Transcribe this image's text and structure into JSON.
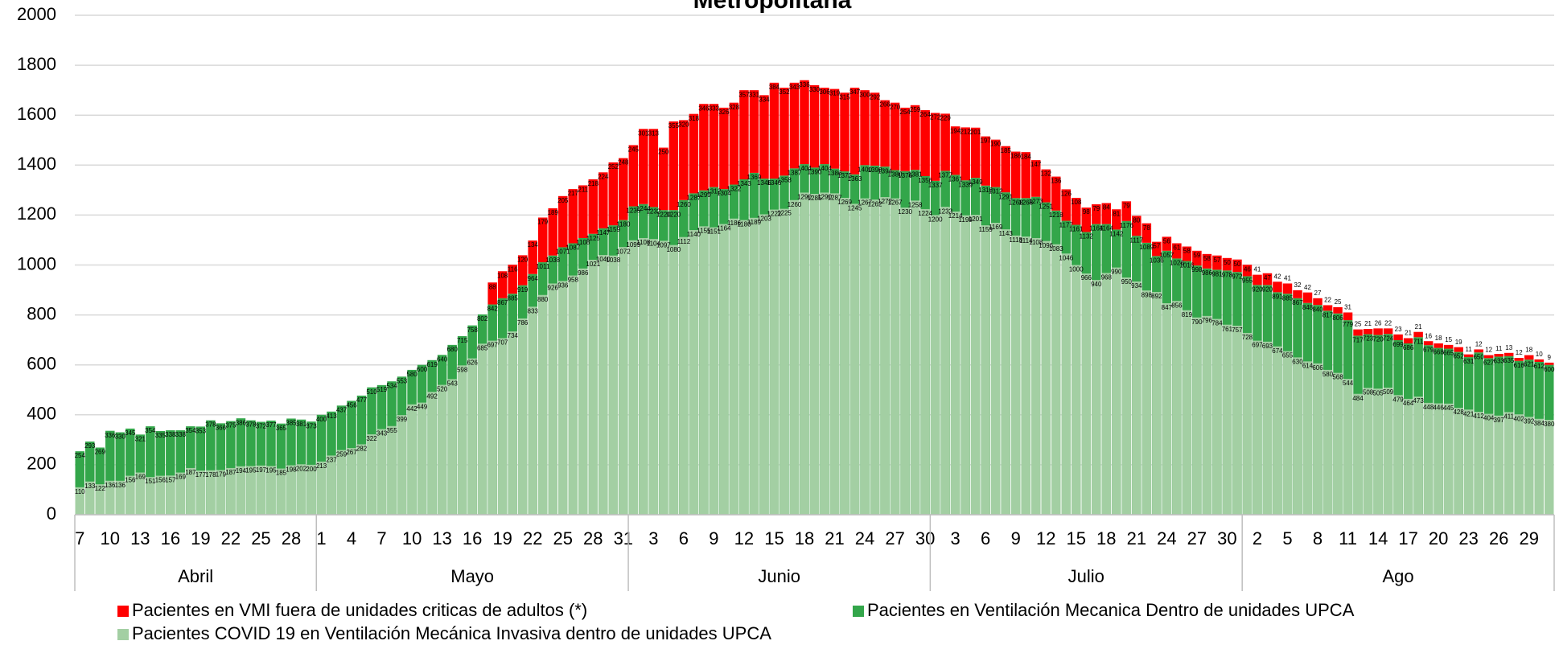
{
  "chart_data": {
    "type": "bar",
    "title": "Metropolitana",
    "groups": [
      {
        "label": "Abril",
        "categories": [
          7,
          null,
          null,
          10,
          null,
          null,
          13,
          null,
          null,
          16,
          null,
          null,
          19,
          null,
          null,
          22,
          null,
          null,
          25,
          null,
          null,
          28,
          null,
          null
        ]
      },
      {
        "label": "Mayo",
        "categories": [
          1,
          null,
          null,
          4,
          null,
          null,
          7,
          null,
          null,
          10,
          null,
          null,
          13,
          null,
          null,
          16,
          null,
          null,
          19,
          null,
          null,
          22,
          null,
          null,
          25,
          null,
          null,
          28,
          null,
          null,
          31
        ]
      },
      {
        "label": "Junio",
        "categories": [
          null,
          null,
          3,
          null,
          null,
          6,
          null,
          null,
          9,
          null,
          null,
          12,
          null,
          null,
          15,
          null,
          null,
          18,
          null,
          null,
          21,
          null,
          null,
          24,
          null,
          null,
          27,
          null,
          null,
          30
        ]
      },
      {
        "label": "Julio",
        "categories": [
          null,
          null,
          3,
          null,
          null,
          6,
          null,
          null,
          9,
          null,
          null,
          12,
          null,
          null,
          15,
          null,
          null,
          18,
          null,
          null,
          21,
          null,
          null,
          24,
          null,
          null,
          27,
          null,
          null,
          30,
          null
        ]
      },
      {
        "label": "Ago",
        "categories": [
          null,
          2,
          null,
          null,
          5,
          null,
          null,
          8,
          null,
          null,
          11,
          null,
          null,
          14,
          null,
          null,
          17,
          null,
          null,
          20,
          null,
          null,
          23,
          null,
          null,
          26,
          null,
          null,
          29,
          null,
          null
        ]
      }
    ],
    "series": [
      {
        "name": "Pacientes en VMI fuera de unidades criticas de adultos (*)",
        "color": "#ff0000",
        "values": [
          0,
          0,
          0,
          0,
          0,
          0,
          0,
          0,
          0,
          0,
          0,
          0,
          0,
          0,
          0,
          0,
          0,
          0,
          0,
          0,
          0,
          0,
          0,
          0,
          0,
          0,
          0,
          0,
          0,
          0,
          0,
          0,
          0,
          0,
          0,
          0,
          0,
          0,
          0,
          0,
          0,
          88,
          108,
          116,
          120,
          134,
          179,
          189,
          205,
          217,
          211,
          218,
          224,
          252,
          248,
          245,
          301,
          313,
          250,
          355,
          320,
          318,
          346,
          333,
          326,
          328,
          357,
          331,
          334,
          384,
          352,
          343,
          336,
          330,
          306,
          319,
          315,
          347,
          300,
          292,
          266,
          270,
          254,
          259,
          264,
          272,
          229,
          194,
          212,
          201,
          197,
          190,
          185,
          186,
          184,
          147,
          132,
          136,
          126,
          108,
          98,
          79,
          84,
          81,
          79,
          80,
          78,
          57,
          56,
          61,
          58,
          59,
          58,
          57,
          50,
          50,
          46,
          41,
          47,
          42,
          41,
          32,
          42,
          27,
          22,
          25,
          31,
          25,
          21,
          26,
          22,
          23,
          21,
          21,
          16,
          18,
          15,
          19,
          11,
          12,
          12,
          11,
          13,
          12,
          18,
          10,
          9
        ]
      },
      {
        "name": "Pacientes en Ventilación Mecanica Dentro de unidades UPCA",
        "color": "#33a64a",
        "values": [
          254,
          293,
          269,
          336,
          330,
          345,
          321,
          354,
          335,
          338,
          338,
          354,
          353,
          378,
          366,
          375,
          386,
          378,
          372,
          377,
          365,
          385,
          381,
          373,
          400,
          413,
          437,
          456,
          477,
          510,
          519,
          534,
          553,
          580,
          600,
          619,
          640,
          680,
          715,
          758,
          802,
          842,
          867,
          885,
          919,
          964,
          1011,
          1038,
          1071,
          1087,
          1108,
          1125,
          1147,
          1159,
          1180,
          1235,
          1244,
          1232,
          1220,
          1220,
          1260,
          1287,
          1299,
          1312,
          1304,
          1322,
          1343,
          1369,
          1346,
          1346,
          1358,
          1387,
          1404,
          1390,
          1404,
          1386,
          1375,
          1363,
          1400,
          1398,
          1394,
          1380,
          1376,
          1381,
          1356,
          1337,
          1377,
          1361,
          1339,
          1349,
          1318,
          1312,
          1291,
          1268,
          1268,
          1273,
          1251,
          1218,
          1177,
          1161,
          1132,
          1164,
          1164,
          1142,
          1176,
          1117,
          1089,
          1036,
          1057,
          1026,
          1016,
          998,
          986,
          981,
          978,
          972,
          955,
          920,
          920,
          891,
          885,
          867,
          848,
          840,
          817,
          806,
          779,
          717,
          723,
          720,
          724,
          699,
          686,
          711,
          679,
          668,
          665,
          652,
          631,
          650,
          627,
          633,
          635,
          616,
          621,
          612,
          600
        ]
      },
      {
        "name": "Pacientes COVID 19 en Ventilación Mecánica Invasiva dentro de unidades UPCA",
        "color": "#a3cfa3",
        "values": [
          110,
          133,
          122,
          136,
          136,
          156,
          169,
          151,
          156,
          157,
          169,
          187,
          177,
          178,
          179,
          187,
          194,
          195,
          197,
          195,
          185,
          198,
          202,
          200,
          213,
          237,
          259,
          267,
          282,
          322,
          343,
          355,
          399,
          442,
          449,
          492,
          520,
          543,
          598,
          626,
          685,
          697,
          707,
          734,
          786,
          833,
          880,
          926,
          936,
          958,
          986,
          1021,
          1040,
          1038,
          1072,
          1099,
          1108,
          1104,
          1097,
          1080,
          1112,
          1140,
          1155,
          1151,
          1164,
          1186,
          1180,
          1189,
          1203,
          1222,
          1225,
          1260,
          1290,
          1285,
          1290,
          1287,
          1269,
          1245,
          1267,
          1262,
          1272,
          1267,
          1230,
          1258,
          1224,
          1200,
          1233,
          1214,
          1199,
          1201,
          1159,
          1169,
          1143,
          1118,
          1114,
          1108,
          1096,
          1083,
          1046,
          1000,
          966,
          940,
          968,
          990,
          950,
          934,
          898,
          892,
          847,
          856,
          819,
          790,
          796,
          784,
          761,
          757,
          728,
          697,
          693,
          674,
          655,
          630,
          614,
          606,
          580,
          568,
          544,
          484,
          508,
          505,
          509,
          479,
          464,
          473,
          448,
          446,
          445,
          428,
          421,
          412,
          404,
          397,
          411,
          402,
          392,
          384,
          380
        ]
      }
    ],
    "ylim": [
      0,
      2000
    ],
    "yticks": [
      0,
      200,
      400,
      600,
      800,
      1000,
      1200,
      1400,
      1600,
      1800,
      2000
    ],
    "grid": true
  }
}
